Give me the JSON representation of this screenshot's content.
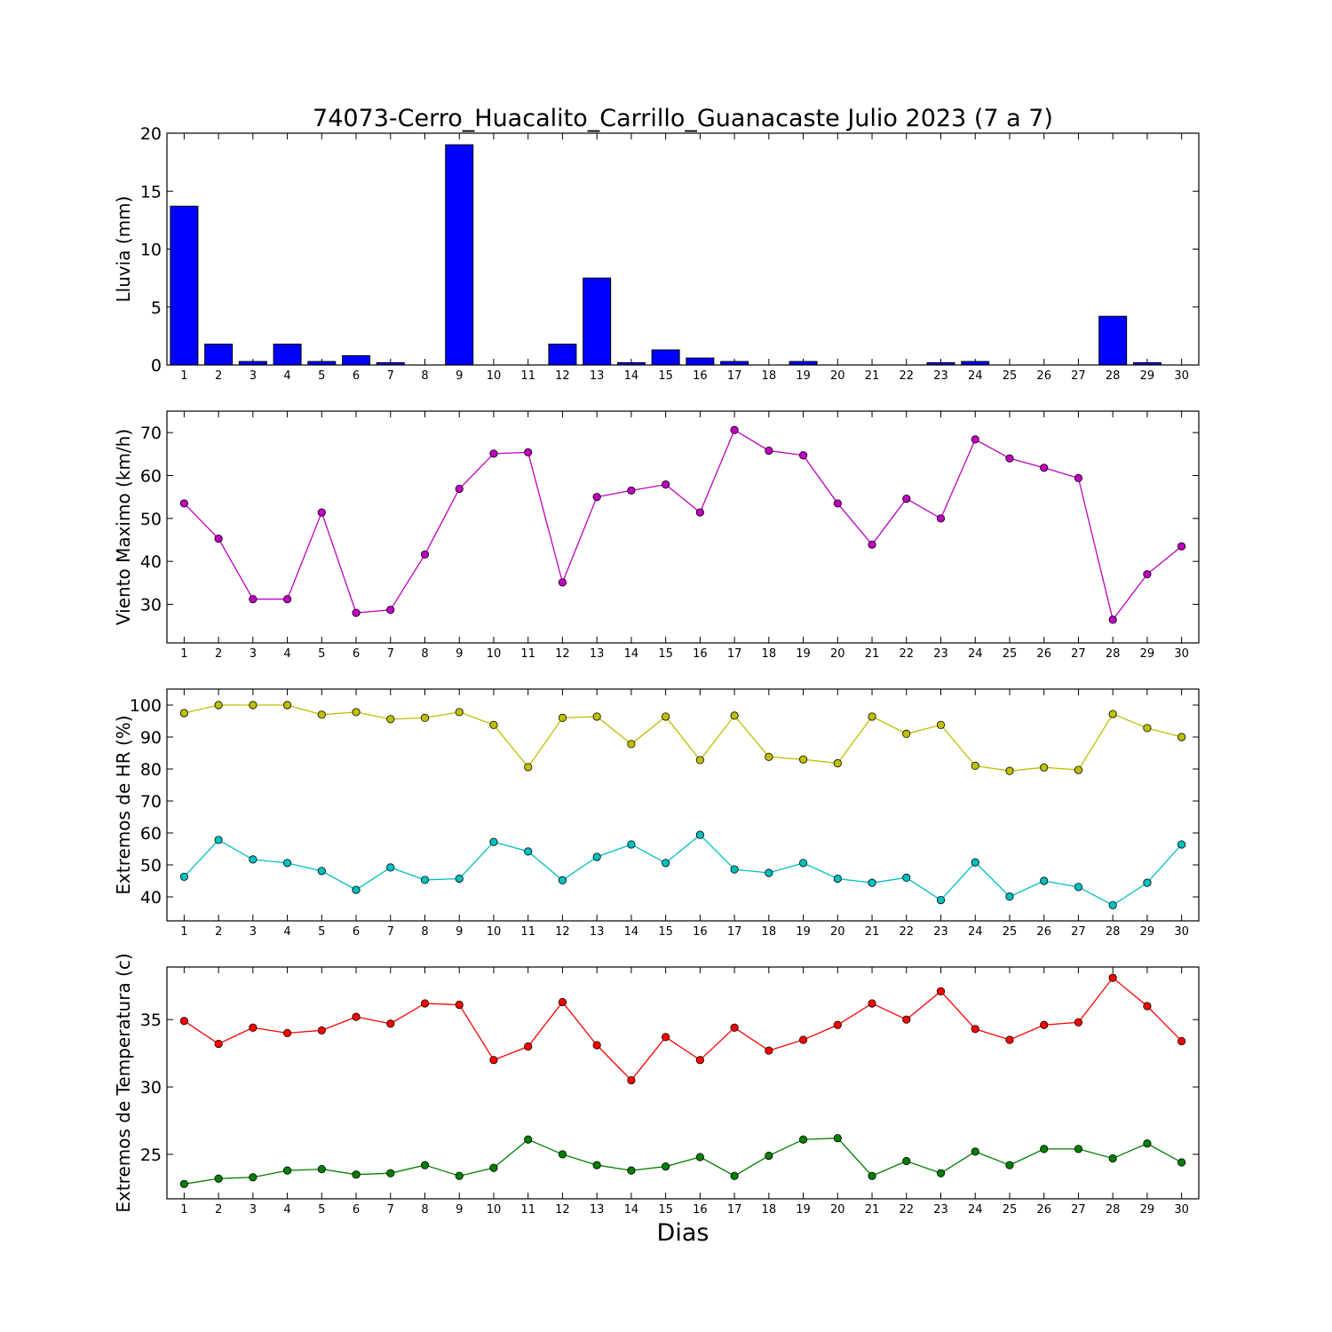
{
  "title": "74073-Cerro_Huacalito_Carrillo_Guanacaste Julio 2023  (7 a 7)",
  "xlabel": "Dias",
  "chart_data": [
    {
      "type": "bar",
      "ylabel": "Lluvia (mm)",
      "categories": [
        1,
        2,
        3,
        4,
        5,
        6,
        7,
        8,
        9,
        10,
        11,
        12,
        13,
        14,
        15,
        16,
        17,
        18,
        19,
        20,
        21,
        22,
        23,
        24,
        25,
        26,
        27,
        28,
        29,
        30
      ],
      "ylim": [
        0,
        20
      ],
      "yticks": [
        0,
        5,
        10,
        15,
        20
      ],
      "color": "#0000ff",
      "series": [
        {
          "values": [
            13.7,
            1.8,
            0.3,
            1.8,
            0.3,
            0.8,
            0.2,
            0,
            19.0,
            0,
            0,
            1.8,
            7.5,
            0.2,
            1.3,
            0.6,
            0.3,
            0,
            0.3,
            0,
            0,
            0,
            0.2,
            0.3,
            0,
            0,
            0,
            4.2,
            0.2,
            0
          ]
        }
      ]
    },
    {
      "type": "line",
      "ylabel": "Viento Maximo (km/h)",
      "x": [
        1,
        2,
        3,
        4,
        5,
        6,
        7,
        8,
        9,
        10,
        11,
        12,
        13,
        14,
        15,
        16,
        17,
        18,
        19,
        20,
        21,
        22,
        23,
        24,
        25,
        26,
        27,
        28,
        29,
        30
      ],
      "ylim": [
        21,
        75
      ],
      "yticks": [
        30,
        40,
        50,
        60,
        70
      ],
      "series": [
        {
          "color": "#bf00bf",
          "values": [
            53.5,
            45.3,
            31.2,
            31.2,
            51.4,
            28.0,
            28.7,
            41.6,
            56.9,
            65.1,
            65.4,
            35.1,
            55.0,
            56.5,
            57.9,
            51.4,
            70.6,
            65.8,
            64.7,
            53.5,
            43.9,
            54.6,
            50.0,
            68.4,
            64.0,
            61.8,
            59.4,
            26.4,
            37.0,
            43.5
          ]
        }
      ]
    },
    {
      "type": "line",
      "ylabel": "Extremos de HR (%)",
      "x": [
        1,
        2,
        3,
        4,
        5,
        6,
        7,
        8,
        9,
        10,
        11,
        12,
        13,
        14,
        15,
        16,
        17,
        18,
        19,
        20,
        21,
        22,
        23,
        24,
        25,
        26,
        27,
        28,
        29,
        30
      ],
      "ylim": [
        32.5,
        105
      ],
      "yticks": [
        40,
        50,
        60,
        70,
        80,
        90,
        100
      ],
      "series": [
        {
          "color": "#bfbf00",
          "values": [
            97.5,
            100,
            100,
            100,
            97,
            97.8,
            95.6,
            96,
            97.8,
            93.8,
            80.6,
            96,
            96.4,
            87.8,
            96.4,
            82.8,
            96.7,
            83.8,
            83,
            81.8,
            96.4,
            91,
            93.8,
            81,
            79.4,
            80.5,
            79.7,
            97.2,
            92.8,
            90
          ]
        },
        {
          "color": "#00bfbf",
          "values": [
            46.3,
            57.8,
            51.7,
            50.6,
            48.1,
            42.2,
            49.2,
            45.3,
            45.7,
            57.2,
            54.2,
            45.2,
            52.5,
            56.4,
            50.6,
            59.4,
            48.6,
            47.5,
            50.6,
            45.7,
            44.4,
            46,
            39,
            50.8,
            40.1,
            45,
            43.1,
            37.4,
            44.4,
            56.4
          ]
        }
      ]
    },
    {
      "type": "line",
      "ylabel": "Extremos de Temperatura (c)",
      "x": [
        1,
        2,
        3,
        4,
        5,
        6,
        7,
        8,
        9,
        10,
        11,
        12,
        13,
        14,
        15,
        16,
        17,
        18,
        19,
        20,
        21,
        22,
        23,
        24,
        25,
        26,
        27,
        28,
        29,
        30
      ],
      "ylim": [
        21.7,
        38.9
      ],
      "yticks": [
        25,
        30,
        35
      ],
      "series": [
        {
          "color": "#ff0000",
          "values": [
            34.9,
            33.2,
            34.4,
            34.0,
            34.2,
            35.2,
            34.7,
            36.2,
            36.1,
            32.0,
            33.0,
            36.3,
            33.1,
            30.5,
            33.7,
            32.0,
            34.4,
            32.7,
            33.5,
            34.6,
            36.2,
            35.0,
            37.1,
            34.3,
            33.5,
            34.6,
            34.8,
            38.1,
            36.0,
            33.4
          ]
        },
        {
          "color": "#007f00",
          "values": [
            22.8,
            23.2,
            23.3,
            23.8,
            23.9,
            23.5,
            23.6,
            24.2,
            23.4,
            24.0,
            26.1,
            25.0,
            24.2,
            23.8,
            24.1,
            24.8,
            23.4,
            24.9,
            26.1,
            26.2,
            23.4,
            24.5,
            23.6,
            25.2,
            24.2,
            25.4,
            25.4,
            24.7,
            25.8,
            24.4
          ]
        }
      ]
    }
  ]
}
